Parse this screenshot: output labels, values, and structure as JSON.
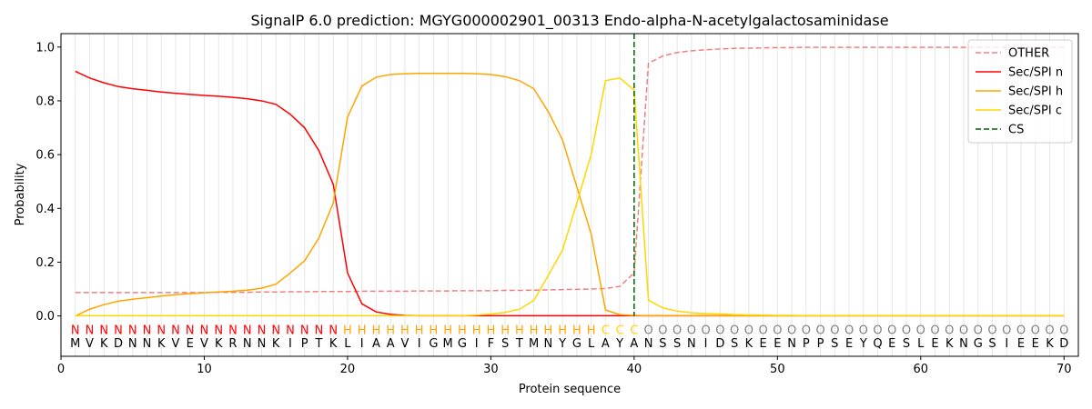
{
  "chart_data": {
    "type": "line",
    "title": "SignalP 6.0 prediction: MGYG000002901_00313 Endo-alpha-N-acetylgalactosaminidase",
    "xlabel": "Protein sequence",
    "ylabel": "Probability",
    "xlim": [
      0,
      71
    ],
    "ylim": [
      -0.15,
      1.05
    ],
    "xticks": [
      0,
      10,
      20,
      30,
      40,
      50,
      60,
      70
    ],
    "yticks": [
      {
        "value": 0,
        "label": "0.0"
      },
      {
        "value": 0.2,
        "label": "0.2"
      },
      {
        "value": 0.4,
        "label": "0.4"
      },
      {
        "value": 0.6,
        "label": "0.6"
      },
      {
        "value": 0.8,
        "label": "0.8"
      },
      {
        "value": 1,
        "label": "1.0"
      }
    ],
    "legend": "upper right",
    "x": [
      1,
      2,
      3,
      4,
      5,
      6,
      7,
      8,
      9,
      10,
      11,
      12,
      13,
      14,
      15,
      16,
      17,
      18,
      19,
      20,
      21,
      22,
      23,
      24,
      25,
      26,
      27,
      28,
      29,
      30,
      31,
      32,
      33,
      34,
      35,
      36,
      37,
      38,
      39,
      40,
      41,
      42,
      43,
      44,
      45,
      46,
      47,
      48,
      49,
      50,
      51,
      52,
      53,
      54,
      55,
      56,
      57,
      58,
      59,
      60,
      61,
      62,
      63,
      64,
      65,
      66,
      67,
      68,
      69,
      70
    ],
    "series": [
      {
        "name": "OTHER",
        "color": "#f08080",
        "dash": true,
        "values": [
          0.087,
          0.087,
          0.087,
          0.087,
          0.087,
          0.087,
          0.087,
          0.087,
          0.087,
          0.087,
          0.088,
          0.088,
          0.088,
          0.089,
          0.089,
          0.09,
          0.09,
          0.091,
          0.091,
          0.091,
          0.092,
          0.092,
          0.092,
          0.092,
          0.093,
          0.093,
          0.093,
          0.094,
          0.094,
          0.094,
          0.095,
          0.095,
          0.096,
          0.097,
          0.098,
          0.099,
          0.1,
          0.102,
          0.11,
          0.16,
          0.94,
          0.967,
          0.98,
          0.986,
          0.99,
          0.993,
          0.995,
          0.996,
          0.997,
          0.998,
          0.998,
          0.999,
          0.999,
          0.999,
          0.999,
          0.999,
          0.999,
          0.999,
          0.999,
          0.999,
          0.999,
          0.999,
          0.999,
          0.999,
          0.999,
          0.999,
          0.999,
          0.999,
          0.999,
          0.999
        ]
      },
      {
        "name": "Sec/SPI n",
        "color": "#ff0000",
        "values": [
          0.91,
          0.885,
          0.867,
          0.853,
          0.845,
          0.839,
          0.833,
          0.828,
          0.824,
          0.82,
          0.817,
          0.813,
          0.808,
          0.8,
          0.787,
          0.75,
          0.7,
          0.615,
          0.49,
          0.16,
          0.045,
          0.015,
          0.006,
          0.002,
          0.001,
          0.001,
          0.001,
          0.001,
          0.001,
          0.001,
          0.001,
          0.001,
          0.001,
          0.001,
          0.001,
          0.001,
          0.001,
          0.001,
          0.001,
          0.001,
          0.001,
          0.001,
          0.001,
          0.001,
          0.001,
          0.001,
          0.001,
          0.001,
          0.001,
          0.001,
          0.001,
          0.001,
          0.001,
          0.001,
          0.001,
          0.001,
          0.001,
          0.001,
          0.001,
          0.001,
          0.001,
          0.001,
          0.001,
          0.001,
          0.001,
          0.001,
          0.001,
          0.001,
          0.001,
          0.001
        ]
      },
      {
        "name": "Sec/SPI h",
        "color": "#ffa500",
        "values": [
          0.0,
          0.025,
          0.042,
          0.055,
          0.062,
          0.068,
          0.074,
          0.079,
          0.083,
          0.086,
          0.089,
          0.092,
          0.096,
          0.103,
          0.118,
          0.16,
          0.205,
          0.29,
          0.42,
          0.74,
          0.855,
          0.888,
          0.898,
          0.901,
          0.902,
          0.902,
          0.902,
          0.902,
          0.901,
          0.898,
          0.89,
          0.875,
          0.845,
          0.76,
          0.655,
          0.48,
          0.305,
          0.022,
          0.005,
          0.002,
          0.001,
          0.001,
          0.001,
          0.001,
          0.001,
          0.001,
          0.001,
          0.001,
          0.001,
          0.001,
          0.001,
          0.001,
          0.001,
          0.001,
          0.001,
          0.001,
          0.001,
          0.001,
          0.001,
          0.001,
          0.001,
          0.001,
          0.001,
          0.001,
          0.001,
          0.001,
          0.001,
          0.001,
          0.001,
          0.001
        ]
      },
      {
        "name": "Sec/SPI c",
        "color": "#ffd700",
        "values": [
          0.001,
          0.001,
          0.001,
          0.001,
          0.001,
          0.001,
          0.001,
          0.001,
          0.001,
          0.001,
          0.001,
          0.001,
          0.001,
          0.001,
          0.001,
          0.001,
          0.001,
          0.001,
          0.001,
          0.001,
          0.001,
          0.001,
          0.001,
          0.001,
          0.001,
          0.001,
          0.001,
          0.001,
          0.003,
          0.007,
          0.013,
          0.025,
          0.058,
          0.15,
          0.245,
          0.42,
          0.6,
          0.875,
          0.885,
          0.84,
          0.058,
          0.03,
          0.018,
          0.012,
          0.009,
          0.007,
          0.005,
          0.004,
          0.003,
          0.002,
          0.002,
          0.001,
          0.001,
          0.001,
          0.001,
          0.001,
          0.001,
          0.001,
          0.001,
          0.001,
          0.001,
          0.001,
          0.001,
          0.001,
          0.001,
          0.001,
          0.001,
          0.001,
          0.001,
          0.001
        ]
      }
    ],
    "cs": {
      "name": "CS",
      "x": 40,
      "color": "#006400"
    },
    "label_y": -0.05,
    "sequence_y": -0.1,
    "label_colors": {
      "N": "#ff0000",
      "H": "#ffa500",
      "C": "#ffd700",
      "O": "#808080"
    },
    "labels": [
      "N",
      "N",
      "N",
      "N",
      "N",
      "N",
      "N",
      "N",
      "N",
      "N",
      "N",
      "N",
      "N",
      "N",
      "N",
      "N",
      "N",
      "N",
      "N",
      "H",
      "H",
      "H",
      "H",
      "H",
      "H",
      "H",
      "H",
      "H",
      "H",
      "H",
      "H",
      "H",
      "H",
      "H",
      "H",
      "H",
      "H",
      "C",
      "C",
      "C",
      "O",
      "O",
      "O",
      "O",
      "O",
      "O",
      "O",
      "O",
      "O",
      "O",
      "O",
      "O",
      "O",
      "O",
      "O",
      "O",
      "O",
      "O",
      "O",
      "O",
      "O",
      "O",
      "O",
      "O",
      "O",
      "O",
      "O",
      "O",
      "O",
      "O"
    ],
    "sequence": [
      "M",
      "V",
      "K",
      "D",
      "N",
      "N",
      "K",
      "V",
      "E",
      "V",
      "K",
      "R",
      "N",
      "N",
      "K",
      "I",
      "P",
      "T",
      "K",
      "L",
      "I",
      "A",
      "A",
      "V",
      "I",
      "G",
      "M",
      "G",
      "I",
      "F",
      "S",
      "T",
      "M",
      "N",
      "Y",
      "G",
      "L",
      "A",
      "Y",
      "A",
      "N",
      "S",
      "S",
      "N",
      "I",
      "D",
      "S",
      "K",
      "E",
      "E",
      "N",
      "P",
      "P",
      "S",
      "E",
      "Y",
      "Q",
      "E",
      "S",
      "L",
      "E",
      "K",
      "N",
      "G",
      "S",
      "I",
      "E",
      "E",
      "K",
      "D"
    ]
  }
}
